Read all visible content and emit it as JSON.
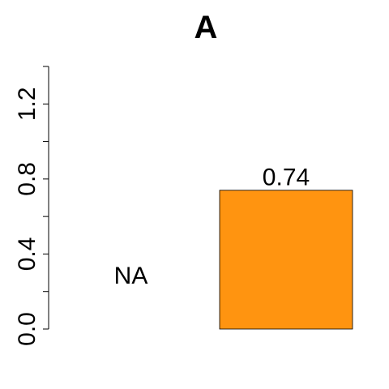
{
  "chart_data": {
    "type": "bar",
    "title": "A",
    "xlabel": "",
    "ylabel": "",
    "categories": [
      "",
      ""
    ],
    "values": [
      null,
      0.74
    ],
    "data_labels": [
      "NA",
      "0.74"
    ],
    "bar_colors": [
      "#FF9410",
      "#FF9410"
    ],
    "ylim": [
      0,
      1.4
    ],
    "y_ticks_minor": [
      0.0,
      0.2,
      0.4,
      0.6,
      0.8,
      1.0,
      1.2,
      1.4
    ],
    "y_tick_labels": [
      "0.0",
      "0.4",
      "0.8",
      "1.2"
    ],
    "grid": false,
    "legend": "none"
  }
}
